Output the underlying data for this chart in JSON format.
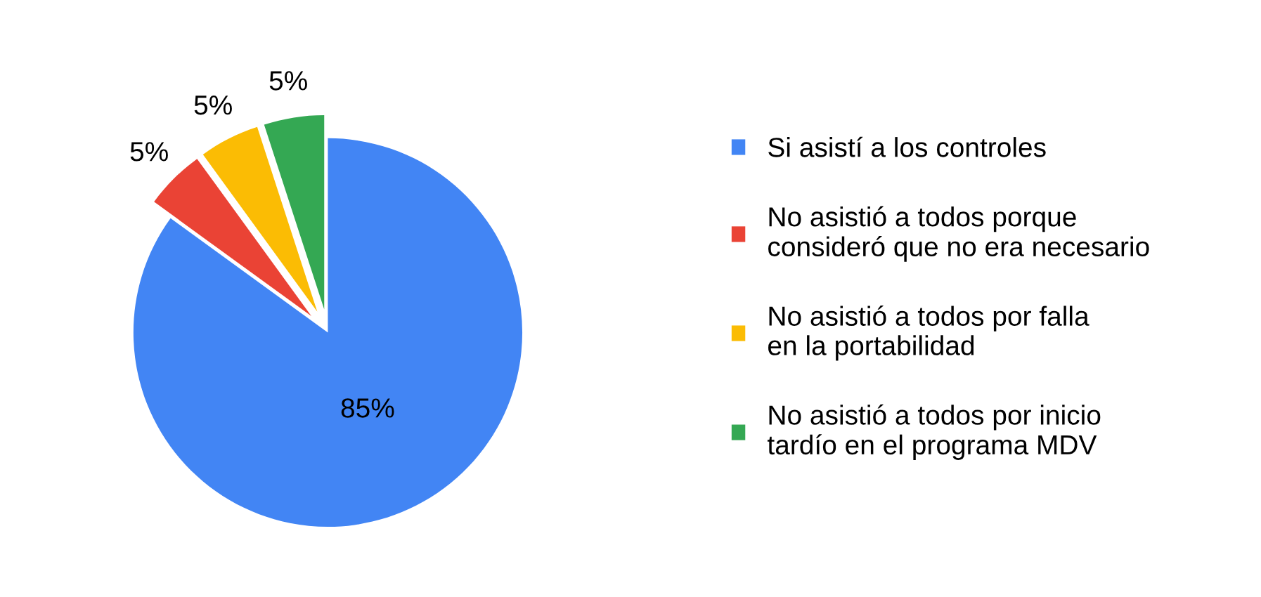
{
  "chart_data": {
    "type": "pie",
    "categories": [
      "Si asistí a los controles",
      "No asistió a todos porque consideró que no era necesario",
      "No asistió a todos por falla en la portabilidad",
      "No asistió a todos por inicio tardío en el programa MDV"
    ],
    "values": [
      85,
      5,
      5,
      5
    ],
    "colors": [
      "#4285f4",
      "#ea4335",
      "#fbbc04",
      "#34a853"
    ],
    "value_labels": [
      "85%",
      "5%",
      "5%",
      "5%"
    ],
    "legend": "right"
  }
}
